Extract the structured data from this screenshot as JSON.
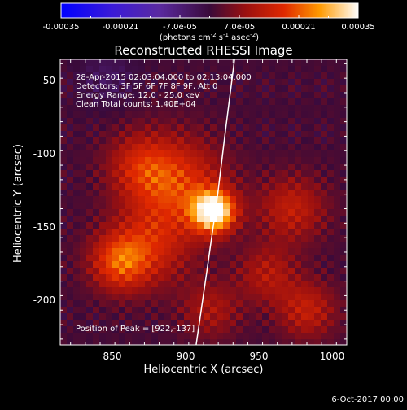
{
  "chart_data": {
    "type": "heatmap",
    "title": "Reconstructed RHESSI Image",
    "xlabel": "Heliocentric X (arcsec)",
    "ylabel": "Heliocentric Y (arcsec)",
    "xlim": [
      818,
      1012
    ],
    "ylim": [
      -229,
      -32
    ],
    "xticks": [
      850,
      900,
      950,
      1000
    ],
    "yticks": [
      -50,
      -100,
      -150,
      -200
    ],
    "colorbar": {
      "range": [
        -0.00035,
        0.00035
      ],
      "ticks": [
        "-0.00035",
        "-0.00021",
        "-7.0e-05",
        "7.0e-05",
        "0.00021",
        "0.00035"
      ],
      "unit_label": {
        "prefix": "(photons cm",
        "sup1": "-2",
        "mid1": " s",
        "sup2": "-1",
        "mid2": " asec",
        "sup3": "-2",
        "suffix": ")"
      }
    },
    "annotations": [
      "28-Apr-2015 02:03:04.000 to 02:13:04.000",
      "Detectors: 3F 5F 6F 7F 8F 9F, Att 0",
      "Energy Range: 12.0 - 25.0 keV",
      "Clean    Total counts: 1.40E+04"
    ],
    "peak_label": "Position of Peak = [922,-137]",
    "limb_curve": [
      [
        936,
        -32
      ],
      [
        930,
        -80
      ],
      [
        924,
        -130
      ],
      [
        917,
        -180
      ],
      [
        910,
        -229
      ]
    ],
    "sources": [
      {
        "x": 922,
        "y": -137,
        "sigma": 10,
        "amp": 0.00035
      },
      {
        "x": 898,
        "y": -118,
        "sigma": 22,
        "amp": 0.00016
      },
      {
        "x": 872,
        "y": -105,
        "sigma": 16,
        "amp": 0.00011
      },
      {
        "x": 858,
        "y": -172,
        "sigma": 14,
        "amp": 0.00017
      },
      {
        "x": 880,
        "y": -160,
        "sigma": 20,
        "amp": 0.00012
      },
      {
        "x": 975,
        "y": -135,
        "sigma": 16,
        "amp": 0.00012
      },
      {
        "x": 985,
        "y": -205,
        "sigma": 14,
        "amp": 0.00012
      },
      {
        "x": 958,
        "y": -180,
        "sigma": 14,
        "amp": 0.0001
      },
      {
        "x": 920,
        "y": -205,
        "sigma": 14,
        "amp": 9e-05
      },
      {
        "x": 850,
        "y": -45,
        "sigma": 14,
        "amp": -5e-05
      }
    ]
  },
  "footer": {
    "date": "6-Oct-2017 00:00"
  }
}
